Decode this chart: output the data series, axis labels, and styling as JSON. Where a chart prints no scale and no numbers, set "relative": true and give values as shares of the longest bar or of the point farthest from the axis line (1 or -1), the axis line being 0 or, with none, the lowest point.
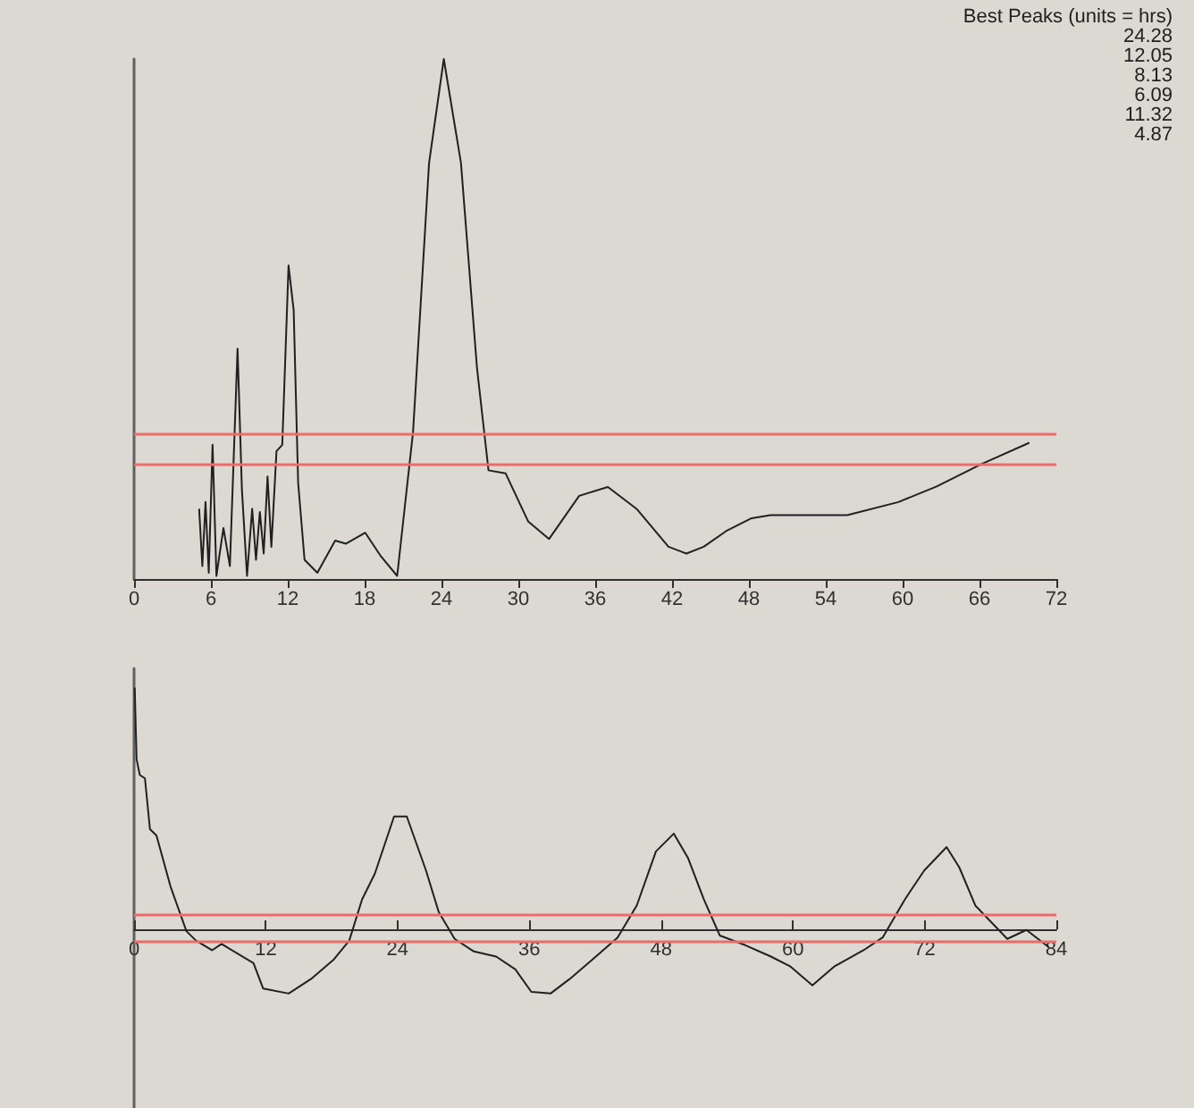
{
  "chart_data": [
    {
      "type": "line",
      "relative": true,
      "annotations": [
        "Best Peaks (units = hrs)",
        "24.28",
        "12.05",
        "8.13",
        "6.09",
        "11.32",
        "4.87"
      ],
      "xlim": [
        0,
        72
      ],
      "xticks": [
        0,
        6,
        12,
        18,
        24,
        30,
        36,
        42,
        48,
        54,
        60,
        66,
        72
      ],
      "marker": "none",
      "line_style": "solid",
      "grid": false,
      "ref_lines": [
        {
          "axis": "y",
          "value": 0.283,
          "color": "#f06a6a"
        },
        {
          "axis": "y",
          "value": 0.222,
          "color": "#f06a6a"
        }
      ],
      "series": [
        {
          "color": "#202020",
          "x": [
            5.08,
            5.33,
            5.58,
            5.83,
            6.13,
            6.43,
            6.98,
            7.48,
            8.08,
            8.42,
            8.82,
            9.22,
            9.52,
            9.82,
            10.12,
            10.42,
            10.72,
            11.12,
            11.57,
            12.06,
            12.46,
            12.81,
            13.31,
            14.31,
            15.7,
            16.55,
            18.05,
            19.29,
            20.54,
            21.78,
            23.03,
            24.18,
            25.52,
            26.77,
            27.67,
            29.01,
            30.76,
            32.4,
            34.75,
            36.99,
            39.23,
            41.72,
            43.12,
            44.47,
            46.21,
            48.21,
            49.7,
            55.68,
            59.67,
            62.66,
            66.15,
            69.89
          ],
          "values": [
            0.135,
            0.025,
            0.148,
            0.012,
            0.258,
            0.006,
            0.098,
            0.025,
            0.443,
            0.172,
            0.006,
            0.135,
            0.037,
            0.129,
            0.049,
            0.197,
            0.062,
            0.246,
            0.258,
            0.603,
            0.517,
            0.185,
            0.037,
            0.012,
            0.074,
            0.068,
            0.089,
            0.043,
            0.006,
            0.283,
            0.8,
            1,
            0.8,
            0.406,
            0.209,
            0.203,
            0.111,
            0.077,
            0.16,
            0.177,
            0.135,
            0.062,
            0.049,
            0.062,
            0.092,
            0.117,
            0.123,
            0.123,
            0.148,
            0.178,
            0.221,
            0.262
          ]
        }
      ]
    },
    {
      "type": "line",
      "relative": true,
      "xlim": [
        0,
        84
      ],
      "xticks": [
        0,
        12,
        24,
        36,
        48,
        60,
        72,
        84
      ],
      "marker": "none",
      "line_style": "solid",
      "grid": false,
      "ref_lines": [
        {
          "axis": "y",
          "value": 0.063,
          "color": "#f06a6a"
        },
        {
          "axis": "y",
          "value": -0.053,
          "color": "#f06a6a"
        }
      ],
      "series": [
        {
          "color": "#202020",
          "x": [
            0.06,
            0.23,
            0.52,
            0.99,
            1.45,
            2.04,
            3.32,
            4.77,
            5.64,
            7.1,
            7.97,
            10.88,
            11.75,
            14.08,
            16.11,
            18.15,
            19.6,
            20.77,
            21.93,
            23.68,
            24.84,
            26.59,
            27.75,
            29.2,
            30.95,
            32.98,
            34.73,
            36.18,
            37.93,
            39.67,
            41.71,
            44.04,
            45.78,
            47.53,
            49.16,
            50.44,
            51.89,
            53.35,
            55.67,
            58,
            59.74,
            61.78,
            63.81,
            66.43,
            68.18,
            70.21,
            71.96,
            74,
            75.16,
            76.62,
            79.53,
            81.27,
            83.31
          ],
          "values": [
            1,
            0.704,
            0.639,
            0.625,
            0.414,
            0.388,
            0.177,
            -0.008,
            -0.047,
            -0.087,
            -0.061,
            -0.14,
            -0.245,
            -0.266,
            -0.206,
            -0.127,
            -0.047,
            0.124,
            0.23,
            0.467,
            0.467,
            0.243,
            0.071,
            -0.04,
            -0.092,
            -0.113,
            -0.166,
            -0.259,
            -0.266,
            -0.206,
            -0.127,
            -0.034,
            0.098,
            0.322,
            0.396,
            0.296,
            0.124,
            -0.026,
            -0.066,
            -0.113,
            -0.153,
            -0.232,
            -0.153,
            -0.087,
            -0.034,
            0.124,
            0.243,
            0.34,
            0.256,
            0.098,
            -0.04,
            -0.003,
            -0.074
          ]
        }
      ]
    }
  ]
}
